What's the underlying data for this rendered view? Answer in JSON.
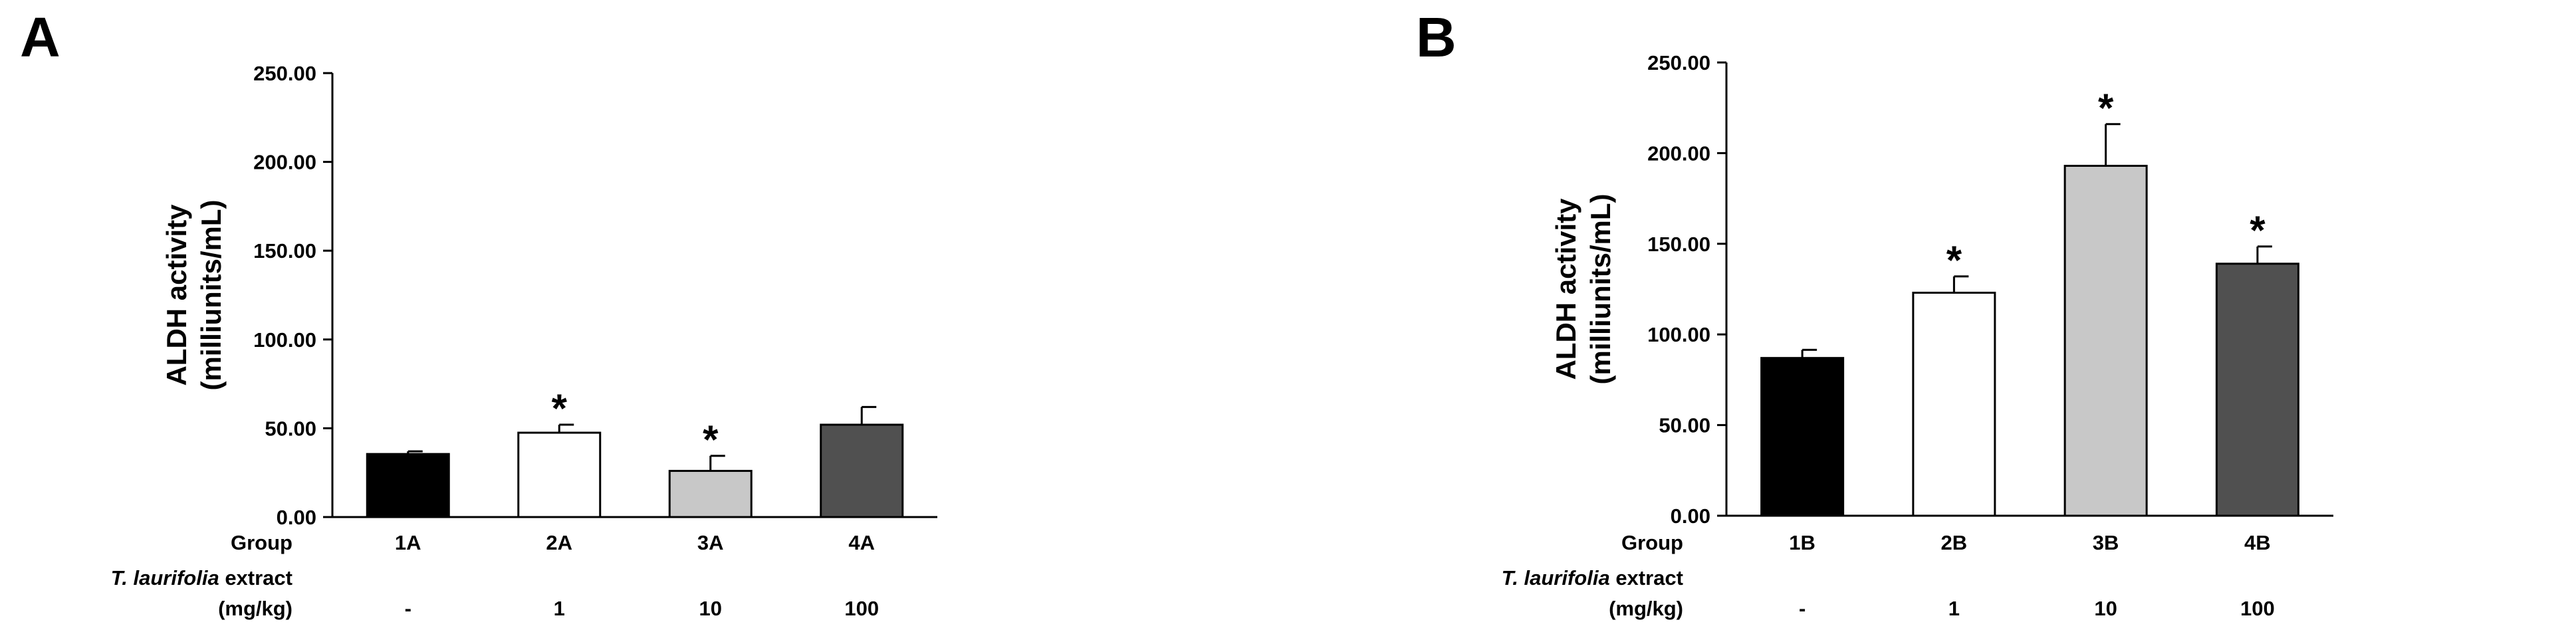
{
  "chart_data": [
    {
      "panel_label": "A",
      "type": "bar",
      "categories": [
        "1A",
        "2A",
        "3A",
        "4A"
      ],
      "values": [
        35.5,
        47.5,
        26.0,
        52.0
      ],
      "errors": [
        1.5,
        4.5,
        8.5,
        10.0
      ],
      "significance": [
        "",
        "*",
        "*",
        ""
      ],
      "bar_colors": [
        "#000000",
        "#ffffff",
        "#c8c8c8",
        "#505050"
      ],
      "ylabel_line1": "ALDH activity",
      "ylabel_line2": "(milliunits/mL)",
      "ylim": [
        0,
        250
      ],
      "yticks": [
        "0.00",
        "50.00",
        "100.00",
        "150.00",
        "200.00",
        "250.00"
      ],
      "grid": false,
      "table_rows": [
        {
          "label": "Group",
          "cells": [
            "1A",
            "2A",
            "3A",
            "4A"
          ]
        },
        {
          "label_italic": "T. laurifolia",
          "label_rest": " extract",
          "cells": [
            "",
            "",
            "",
            ""
          ]
        },
        {
          "label": "(mg/kg)",
          "cells": [
            "-",
            "1",
            "10",
            "100"
          ]
        }
      ]
    },
    {
      "panel_label": "B",
      "type": "bar",
      "categories": [
        "1B",
        "2B",
        "3B",
        "4B"
      ],
      "values": [
        87.0,
        123.0,
        193.0,
        139.0
      ],
      "errors": [
        4.5,
        9.0,
        23.0,
        9.5
      ],
      "significance": [
        "",
        "*",
        "*",
        "*"
      ],
      "bar_colors": [
        "#000000",
        "#ffffff",
        "#c8c8c8",
        "#505050"
      ],
      "ylabel_line1": "ALDH activity",
      "ylabel_line2": "(milliunits/mL)",
      "ylim": [
        0,
        250
      ],
      "yticks": [
        "0.00",
        "50.00",
        "100.00",
        "150.00",
        "200.00",
        "250.00"
      ],
      "grid": false,
      "table_rows": [
        {
          "label": "Group",
          "cells": [
            "1B",
            "2B",
            "3B",
            "4B"
          ]
        },
        {
          "label_italic": "T. laurifolia",
          "label_rest": " extract",
          "cells": [
            "",
            "",
            "",
            ""
          ]
        },
        {
          "label": "(mg/kg)",
          "cells": [
            "-",
            "1",
            "10",
            "100"
          ]
        }
      ]
    }
  ]
}
